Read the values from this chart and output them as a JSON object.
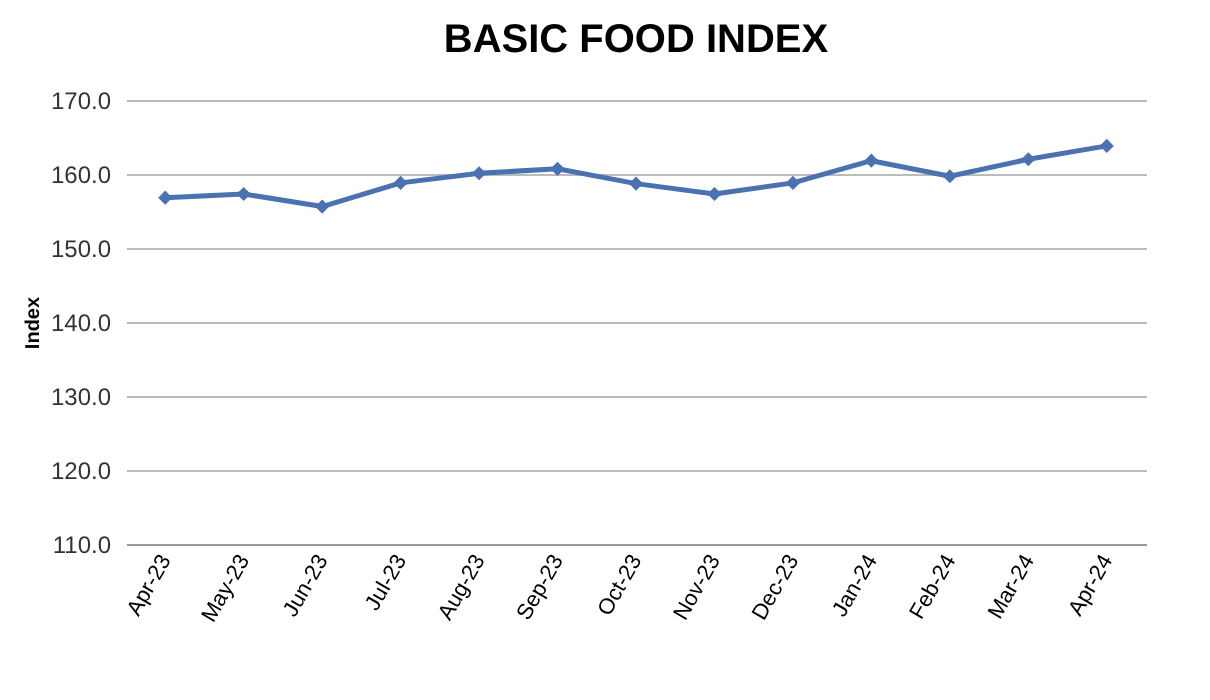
{
  "chart_data": {
    "type": "line",
    "title": "BASIC FOOD INDEX",
    "ylabel": "Index",
    "categories": [
      "Apr-23",
      "May-23",
      "Jun-23",
      "Jul-23",
      "Aug-23",
      "Sep-23",
      "Oct-23",
      "Nov-23",
      "Dec-23",
      "Jan-24",
      "Feb-24",
      "Mar-24",
      "Apr-24"
    ],
    "series": [
      {
        "color": "#4a72b0",
        "values": [
          156.8,
          157.3,
          155.6,
          158.8,
          160.1,
          160.7,
          158.7,
          157.3,
          158.8,
          161.8,
          159.7,
          162.0,
          163.8
        ]
      }
    ],
    "ylim": [
      110,
      170
    ],
    "yticks": [
      {
        "value": 110,
        "label": "110.0"
      },
      {
        "value": 120,
        "label": "120.0"
      },
      {
        "value": 130,
        "label": "130.0"
      },
      {
        "value": 140,
        "label": "140.0"
      },
      {
        "value": 150,
        "label": "150.0"
      },
      {
        "value": 160,
        "label": "160.0"
      },
      {
        "value": 170,
        "label": "170.0"
      }
    ],
    "grid": "y",
    "marker": "diamond",
    "line_style": "solid",
    "legend": false
  }
}
